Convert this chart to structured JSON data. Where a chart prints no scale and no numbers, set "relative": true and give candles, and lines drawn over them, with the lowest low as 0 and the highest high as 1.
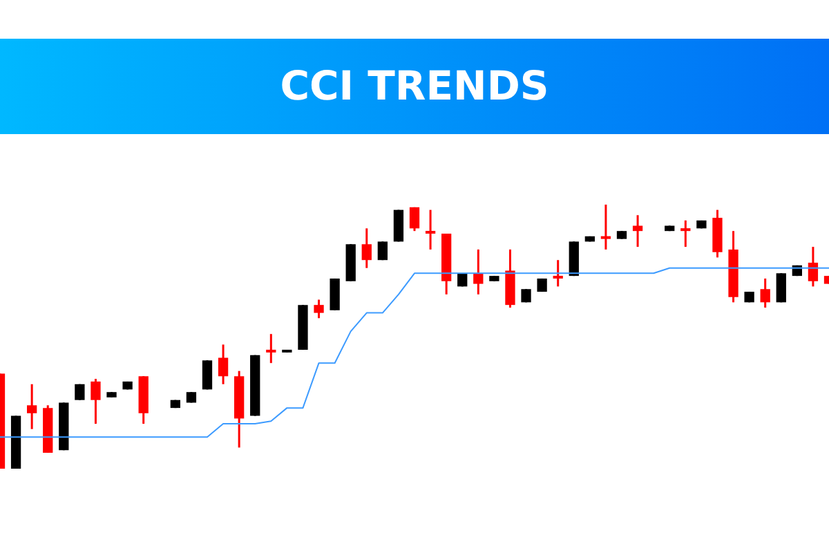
{
  "chart_data": {
    "type": "candlestick",
    "title": "CCI TRENDS",
    "relative": true,
    "categories": [
      null,
      null,
      null,
      null,
      null,
      null,
      null,
      null,
      null,
      null,
      null,
      null,
      null,
      null,
      null,
      null,
      null,
      null,
      null,
      null,
      null,
      null,
      null,
      null,
      null,
      null,
      null,
      null,
      null,
      null,
      null,
      null,
      null,
      null,
      null,
      null,
      null,
      null,
      null,
      null,
      null,
      null,
      null,
      null,
      null,
      null,
      null,
      null,
      null,
      null,
      null,
      null,
      null
    ],
    "ohlc": [
      [
        0.36,
        0.36,
        0,
        0
      ],
      [
        0,
        0.2,
        0,
        0.2
      ],
      [
        0.24,
        0.32,
        0.15,
        0.21
      ],
      [
        0.23,
        0.24,
        0.06,
        0.06
      ],
      [
        0.07,
        0.25,
        0.07,
        0.25
      ],
      [
        0.26,
        0.32,
        0.26,
        0.32
      ],
      [
        0.33,
        0.34,
        0.17,
        0.26
      ],
      [
        0.27,
        0.29,
        0.27,
        0.29
      ],
      [
        0.3,
        0.33,
        0.3,
        0.33
      ],
      [
        0.35,
        0.35,
        0.17,
        0.21
      ],
      null,
      [
        0.23,
        0.26,
        0.23,
        0.26
      ],
      [
        0.25,
        0.29,
        0.25,
        0.29
      ],
      [
        0.3,
        0.41,
        0.3,
        0.41
      ],
      [
        0.42,
        0.47,
        0.32,
        0.35
      ],
      [
        0.35,
        0.37,
        0.08,
        0.19
      ],
      [
        0.2,
        0.43,
        0.2,
        0.43
      ],
      [
        0.45,
        0.51,
        0.4,
        0.44
      ],
      [
        0.44,
        0.45,
        0.44,
        0.45
      ],
      [
        0.45,
        0.62,
        0.45,
        0.62
      ],
      [
        0.62,
        0.64,
        0.57,
        0.59
      ],
      [
        0.6,
        0.72,
        0.6,
        0.72
      ],
      [
        0.71,
        0.85,
        0.71,
        0.85
      ],
      [
        0.85,
        0.91,
        0.76,
        0.79
      ],
      [
        0.79,
        0.86,
        0.79,
        0.86
      ],
      [
        0.86,
        0.98,
        0.86,
        0.98
      ],
      [
        0.99,
        0.99,
        0.9,
        0.91
      ],
      [
        0.9,
        0.98,
        0.83,
        0.89
      ],
      [
        0.89,
        0.89,
        0.66,
        0.71
      ],
      [
        0.69,
        0.74,
        0.69,
        0.74
      ],
      [
        0.74,
        0.83,
        0.66,
        0.7
      ],
      [
        0.71,
        0.73,
        0.71,
        0.73
      ],
      [
        0.75,
        0.83,
        0.61,
        0.62
      ],
      [
        0.63,
        0.68,
        0.63,
        0.68
      ],
      [
        0.67,
        0.72,
        0.67,
        0.72
      ],
      [
        0.73,
        0.79,
        0.69,
        0.72
      ],
      [
        0.73,
        0.86,
        0.73,
        0.86
      ],
      [
        0.86,
        0.88,
        0.86,
        0.88
      ],
      [
        0.88,
        1,
        0.83,
        0.87
      ],
      [
        0.87,
        0.9,
        0.87,
        0.9
      ],
      [
        0.92,
        0.96,
        0.84,
        0.9
      ],
      null,
      [
        0.9,
        0.92,
        0.9,
        0.92
      ],
      [
        0.91,
        0.94,
        0.84,
        0.9
      ],
      [
        0.91,
        0.94,
        0.91,
        0.94
      ],
      [
        0.95,
        0.98,
        0.8,
        0.82
      ],
      [
        0.83,
        0.9,
        0.63,
        0.65
      ],
      [
        0.63,
        0.67,
        0.63,
        0.67
      ],
      [
        0.68,
        0.72,
        0.61,
        0.63
      ],
      [
        0.63,
        0.74,
        0.63,
        0.74
      ],
      [
        0.73,
        0.77,
        0.73,
        0.77
      ],
      [
        0.78,
        0.84,
        0.69,
        0.71
      ],
      [
        0.73,
        0.73,
        0.7,
        0.7
      ]
    ],
    "colors": [
      "#ff0000",
      "#000000",
      "#ff0000",
      "#ff0000",
      "#000000",
      "#000000",
      "#ff0000",
      "#000000",
      "#000000",
      "#ff0000",
      null,
      "#000000",
      "#000000",
      "#000000",
      "#ff0000",
      "#ff0000",
      "#000000",
      "#ff0000",
      "#000000",
      "#000000",
      "#ff0000",
      "#000000",
      "#000000",
      "#ff0000",
      "#000000",
      "#000000",
      "#ff0000",
      "#ff0000",
      "#ff0000",
      "#000000",
      "#ff0000",
      "#000000",
      "#ff0000",
      "#000000",
      "#000000",
      "#ff0000",
      "#000000",
      "#000000",
      "#ff0000",
      "#000000",
      "#ff0000",
      null,
      "#000000",
      "#ff0000",
      "#000000",
      "#ff0000",
      "#ff0000",
      "#000000",
      "#ff0000",
      "#000000",
      "#000000",
      "#ff0000",
      "#ff0000"
    ],
    "series": [
      {
        "type": "line",
        "color": "#3d9bff",
        "values": [
          0.12,
          0.12,
          0.12,
          0.12,
          0.12,
          0.12,
          0.12,
          0.12,
          0.12,
          0.12,
          0.12,
          0.12,
          0.12,
          0.12,
          0.17,
          0.17,
          0.17,
          0.18,
          0.23,
          0.23,
          0.4,
          0.4,
          0.52,
          0.59,
          0.59,
          0.66,
          0.74,
          0.74,
          0.74,
          0.74,
          0.74,
          0.74,
          0.74,
          0.74,
          0.74,
          0.74,
          0.74,
          0.74,
          0.74,
          0.74,
          0.74,
          0.74,
          0.76,
          0.76,
          0.76,
          0.76,
          0.76,
          0.76,
          0.76,
          0.76,
          0.76,
          0.76,
          0.76
        ]
      }
    ]
  }
}
